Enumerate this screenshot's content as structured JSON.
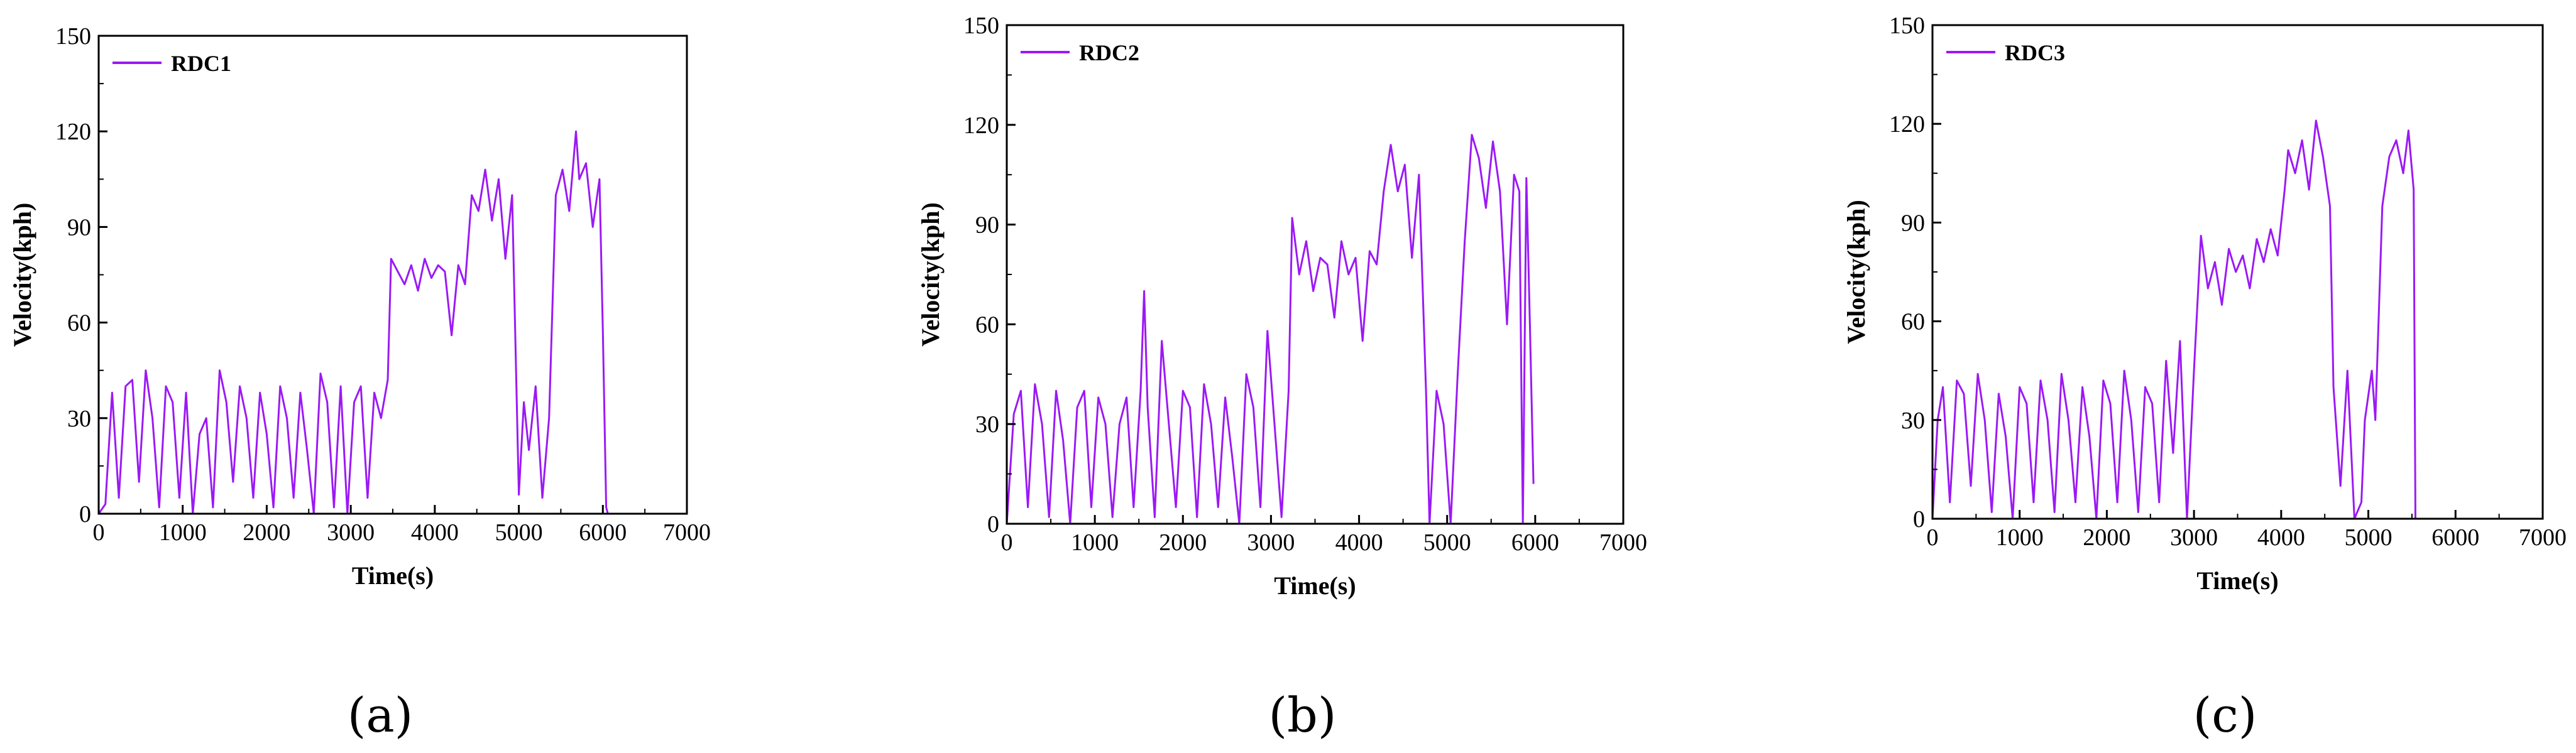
{
  "line_color": "#9b19f5",
  "chart_data": [
    {
      "type": "line",
      "panel_label": "(a)",
      "xlabel": "Time(s)",
      "ylabel": "Velocity(kph)",
      "xlim": [
        0,
        7000
      ],
      "ylim": [
        0,
        150
      ],
      "xticks": [
        "0",
        "1000",
        "2000",
        "3000",
        "4000",
        "5000",
        "6000",
        "7000"
      ],
      "yticks": [
        "0",
        "30",
        "60",
        "90",
        "120",
        "150"
      ],
      "legend": "top-left",
      "series": [
        {
          "name": "RDC1",
          "x": [
            0,
            80,
            160,
            240,
            320,
            400,
            480,
            560,
            640,
            720,
            800,
            880,
            960,
            1040,
            1120,
            1200,
            1280,
            1360,
            1440,
            1520,
            1600,
            1680,
            1760,
            1840,
            1920,
            2000,
            2080,
            2160,
            2240,
            2320,
            2400,
            2480,
            2560,
            2640,
            2720,
            2800,
            2880,
            2960,
            3040,
            3120,
            3200,
            3280,
            3360,
            3440,
            3480,
            3560,
            3640,
            3720,
            3800,
            3880,
            3960,
            4040,
            4120,
            4200,
            4280,
            4360,
            4440,
            4520,
            4600,
            4680,
            4760,
            4840,
            4920,
            5000,
            5060,
            5120,
            5200,
            5280,
            5360,
            5440,
            5520,
            5600,
            5680,
            5720,
            5800,
            5880,
            5960,
            6000,
            6040,
            6060
          ],
          "values": [
            0,
            3,
            38,
            5,
            40,
            42,
            10,
            45,
            30,
            2,
            40,
            35,
            5,
            38,
            0,
            25,
            30,
            2,
            45,
            35,
            10,
            40,
            30,
            5,
            38,
            25,
            2,
            40,
            30,
            5,
            38,
            20,
            0,
            44,
            35,
            2,
            40,
            0,
            35,
            40,
            5,
            38,
            30,
            42,
            80,
            76,
            72,
            78,
            70,
            80,
            74,
            78,
            76,
            56,
            78,
            72,
            100,
            95,
            108,
            92,
            105,
            80,
            100,
            6,
            35,
            20,
            40,
            5,
            30,
            100,
            108,
            95,
            120,
            105,
            110,
            90,
            105,
            57,
            2,
            0
          ]
        }
      ]
    },
    {
      "type": "line",
      "panel_label": "(b)",
      "xlabel": "Time(s)",
      "ylabel": "Velocity(kph)",
      "xlim": [
        0,
        7000
      ],
      "ylim": [
        0,
        150
      ],
      "xticks": [
        "0",
        "1000",
        "2000",
        "3000",
        "4000",
        "5000",
        "6000",
        "7000"
      ],
      "yticks": [
        "0",
        "30",
        "60",
        "90",
        "120",
        "150"
      ],
      "legend": "top-left",
      "series": [
        {
          "name": "RDC2",
          "x": [
            0,
            80,
            160,
            240,
            320,
            400,
            480,
            560,
            640,
            720,
            800,
            880,
            960,
            1040,
            1120,
            1200,
            1280,
            1360,
            1440,
            1520,
            1560,
            1600,
            1680,
            1760,
            1840,
            1920,
            2000,
            2080,
            2160,
            2240,
            2320,
            2400,
            2480,
            2560,
            2640,
            2720,
            2800,
            2880,
            2960,
            3040,
            3120,
            3200,
            3240,
            3320,
            3400,
            3480,
            3560,
            3640,
            3720,
            3800,
            3880,
            3960,
            4040,
            4120,
            4200,
            4280,
            4360,
            4440,
            4520,
            4600,
            4680,
            4760,
            4800,
            4880,
            4960,
            5040,
            5120,
            5200,
            5280,
            5360,
            5440,
            5520,
            5600,
            5680,
            5760,
            5820,
            5860,
            5900,
            5940,
            5980
          ],
          "values": [
            0,
            33,
            40,
            5,
            42,
            30,
            2,
            40,
            25,
            0,
            35,
            40,
            5,
            38,
            30,
            2,
            30,
            38,
            5,
            40,
            70,
            35,
            2,
            55,
            30,
            5,
            40,
            35,
            2,
            42,
            30,
            5,
            38,
            20,
            0,
            45,
            35,
            5,
            58,
            30,
            2,
            40,
            92,
            75,
            85,
            70,
            80,
            78,
            62,
            85,
            75,
            80,
            55,
            82,
            78,
            100,
            114,
            100,
            108,
            80,
            105,
            40,
            0,
            40,
            30,
            0,
            45,
            85,
            117,
            110,
            95,
            115,
            100,
            60,
            105,
            100,
            0,
            104,
            60,
            12
          ]
        }
      ]
    },
    {
      "type": "line",
      "panel_label": "(c)",
      "xlabel": "Time(s)",
      "ylabel": "Velocity(kph)",
      "xlim": [
        0,
        7000
      ],
      "ylim": [
        0,
        150
      ],
      "xticks": [
        "0",
        "1000",
        "2000",
        "3000",
        "4000",
        "5000",
        "6000",
        "7000"
      ],
      "yticks": [
        "0",
        "30",
        "60",
        "90",
        "120",
        "150"
      ],
      "legend": "top-left",
      "series": [
        {
          "name": "RDC3",
          "x": [
            0,
            60,
            120,
            200,
            280,
            360,
            440,
            520,
            600,
            680,
            760,
            840,
            920,
            1000,
            1080,
            1160,
            1240,
            1320,
            1400,
            1480,
            1560,
            1640,
            1720,
            1800,
            1880,
            1960,
            2040,
            2120,
            2200,
            2280,
            2360,
            2440,
            2520,
            2600,
            2680,
            2760,
            2840,
            2920,
            3000,
            3080,
            3160,
            3240,
            3320,
            3400,
            3480,
            3560,
            3640,
            3720,
            3800,
            3880,
            3960,
            4040,
            4080,
            4160,
            4240,
            4320,
            4400,
            4480,
            4560,
            4600,
            4680,
            4760,
            4840,
            4920,
            4960,
            5040,
            5080,
            5160,
            5240,
            5320,
            5400,
            5460,
            5520,
            5540
          ],
          "values": [
            0,
            30,
            40,
            5,
            42,
            38,
            10,
            44,
            30,
            2,
            38,
            25,
            0,
            40,
            35,
            5,
            42,
            30,
            2,
            44,
            30,
            5,
            40,
            25,
            0,
            42,
            35,
            5,
            45,
            30,
            2,
            40,
            35,
            5,
            48,
            20,
            54,
            0,
            45,
            86,
            70,
            78,
            65,
            82,
            75,
            80,
            70,
            85,
            78,
            88,
            80,
            100,
            112,
            105,
            115,
            100,
            121,
            110,
            95,
            40,
            10,
            45,
            0,
            5,
            30,
            45,
            30,
            95,
            110,
            115,
            105,
            118,
            100,
            0
          ]
        }
      ]
    }
  ]
}
